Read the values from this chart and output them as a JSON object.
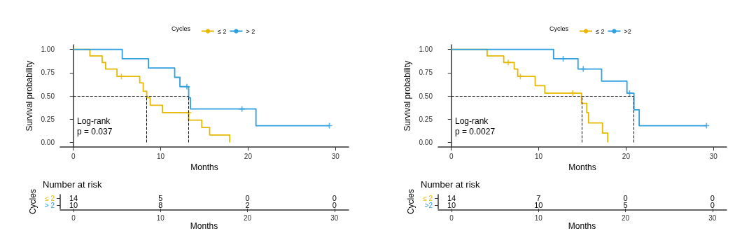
{
  "chart_data": [
    {
      "type": "step",
      "xlabel": "Months",
      "ylabel": "Survival probability",
      "legend_title": "Cycles",
      "legend": "top",
      "annotations": [
        "Log-rank\np = 0.037"
      ],
      "xlim": [
        -1.5,
        31.5
      ],
      "ylim": [
        -0.05,
        1.05
      ],
      "xticks": [
        0,
        10,
        20,
        30
      ],
      "yticks": [
        {
          "value": 0,
          "label": "0.00"
        },
        {
          "value": 0.25,
          "label": "0.25"
        },
        {
          "value": 0.5,
          "label": "0.50"
        },
        {
          "value": 0.75,
          "label": "0.75"
        },
        {
          "value": 1,
          "label": "1.00"
        }
      ],
      "ref_lines": [
        {
          "axis": "y",
          "value": 0.5,
          "line_style": "dashed"
        },
        {
          "axis": "x",
          "value": 8.4,
          "line_style": "dashed"
        },
        {
          "axis": "x",
          "value": 13.2,
          "line_style": "dashed"
        }
      ],
      "series": [
        {
          "name": "≤ 2",
          "color": "#e7b800",
          "marker": "none",
          "x": [
            0,
            1.9,
            3.3,
            3.7,
            5.0,
            7.6,
            8.0,
            8.4,
            8.8,
            10.2,
            13.2,
            14.7,
            15.6,
            17.9
          ],
          "values": [
            1,
            0.93,
            0.86,
            0.79,
            0.71,
            0.64,
            0.55,
            0.48,
            0.4,
            0.32,
            0.24,
            0.16,
            0.08,
            0
          ]
        },
        {
          "name": "> 2",
          "color": "#2e9fdf",
          "marker": "none",
          "x": [
            0,
            5.6,
            8.6,
            11.6,
            12.2,
            13.2,
            13.4,
            20.9,
            29.3
          ],
          "values": [
            1,
            0.9,
            0.8,
            0.7,
            0.6,
            0.48,
            0.36,
            0.18,
            0.18
          ]
        },
        {
          "type": "scatter",
          "color": "#e7b800",
          "marker": "cross",
          "x": [
            5.5,
            13.2
          ],
          "values": [
            0.71,
            0.32
          ]
        },
        {
          "type": "scatter",
          "color": "#2e9fdf",
          "marker": "cross",
          "x": [
            13.0,
            19.3,
            29.3
          ],
          "values": [
            0.6,
            0.36,
            0.18
          ]
        }
      ]
    },
    {
      "type": "step",
      "xlabel": "Months",
      "ylabel": "Survival probability",
      "legend_title": "Cycles",
      "legend": "top",
      "annotations": [
        "Log-rank\np = 0.0027"
      ],
      "xlim": [
        -1.5,
        31.5
      ],
      "ylim": [
        -0.05,
        1.05
      ],
      "xticks": [
        0,
        10,
        20,
        30
      ],
      "yticks": [
        {
          "value": 0,
          "label": "0.00"
        },
        {
          "value": 0.25,
          "label": "0.25"
        },
        {
          "value": 0.5,
          "label": "0.50"
        },
        {
          "value": 0.75,
          "label": "0.75"
        },
        {
          "value": 1,
          "label": "1.00"
        }
      ],
      "ref_lines": [
        {
          "axis": "y",
          "value": 0.5,
          "line_style": "dashed"
        },
        {
          "axis": "x",
          "value": 14.9,
          "line_style": "dashed"
        },
        {
          "axis": "x",
          "value": 20.9,
          "line_style": "dashed"
        }
      ],
      "series": [
        {
          "name": "≤ 2",
          "color": "#e7b800",
          "marker": "none",
          "x": [
            0,
            4.1,
            6.0,
            7.2,
            7.6,
            9.6,
            10.7,
            14.9,
            15.5,
            15.7,
            17.3,
            17.9
          ],
          "values": [
            1,
            0.93,
            0.86,
            0.79,
            0.71,
            0.61,
            0.53,
            0.42,
            0.32,
            0.21,
            0.1,
            0
          ]
        },
        {
          "name": ">2",
          "color": "#2e9fdf",
          "marker": "none",
          "x": [
            0,
            11.7,
            14.5,
            17.2,
            20.1,
            20.9,
            21.5,
            29.2
          ],
          "values": [
            1,
            0.9,
            0.79,
            0.66,
            0.53,
            0.35,
            0.18,
            0.18
          ]
        },
        {
          "type": "scatter",
          "color": "#e7b800",
          "marker": "cross",
          "x": [
            6.5,
            7.9,
            13.9
          ],
          "values": [
            0.86,
            0.71,
            0.53
          ]
        },
        {
          "type": "scatter",
          "color": "#2e9fdf",
          "marker": "cross",
          "x": [
            12.8,
            15.1,
            20.4,
            29.2
          ],
          "values": [
            0.9,
            0.79,
            0.53,
            0.18
          ]
        }
      ]
    },
    {
      "type": "heatmap",
      "title": "Number at risk",
      "xlabel": "Months",
      "ylabel": "Cycles",
      "categories": [
        "0",
        "10",
        "20",
        "30"
      ],
      "data_labels": true,
      "y_categories": [
        "≤ 2",
        "> 2"
      ],
      "colors": [
        "#e7b800",
        "#2e9fdf"
      ],
      "cells": [
        [
          14,
          5,
          0,
          0
        ],
        [
          10,
          8,
          2,
          0
        ]
      ]
    },
    {
      "type": "heatmap",
      "title": "Number at risk",
      "xlabel": "Months",
      "ylabel": "Cycles",
      "categories": [
        "0",
        "10",
        "20",
        "30"
      ],
      "data_labels": true,
      "y_categories": [
        "≤ 2",
        ">2"
      ],
      "colors": [
        "#e7b800",
        "#2e9fdf"
      ],
      "cells": [
        [
          14,
          7,
          0,
          0
        ],
        [
          10,
          10,
          5,
          0
        ]
      ]
    }
  ]
}
